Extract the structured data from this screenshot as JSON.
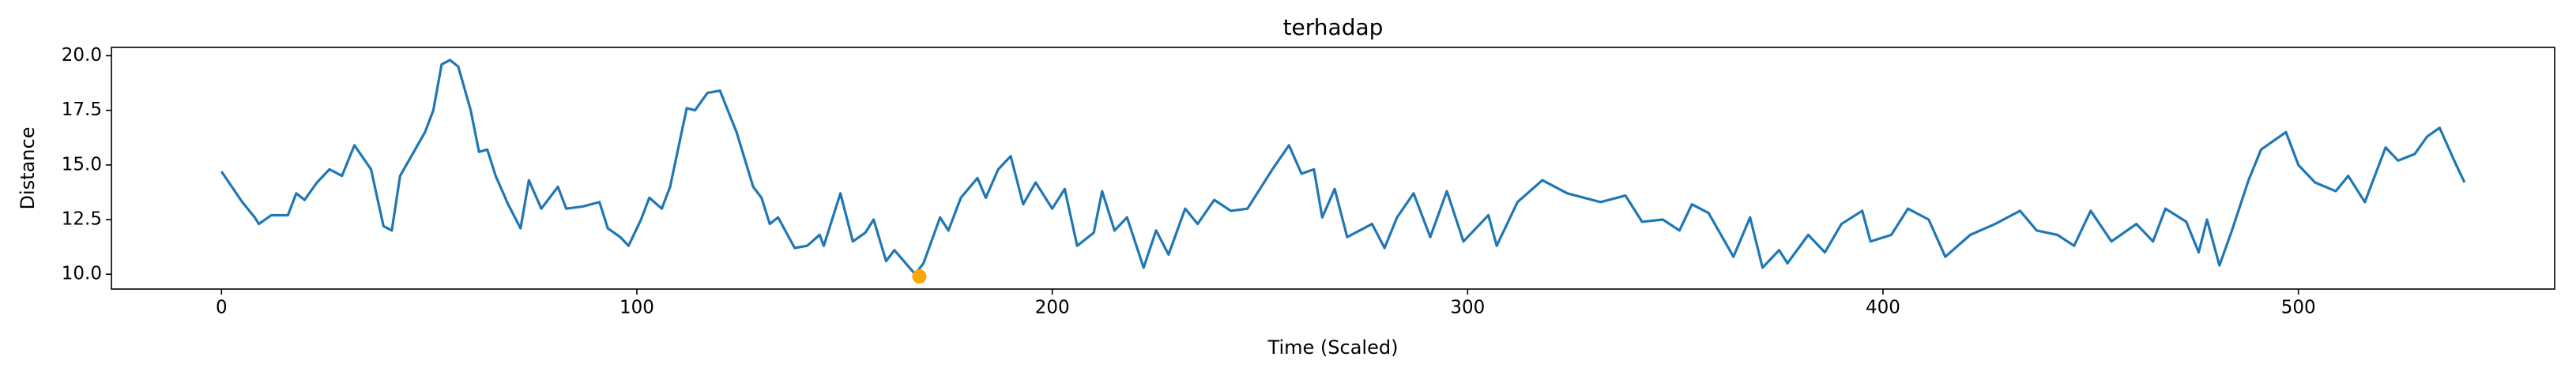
{
  "chart_data": {
    "type": "line",
    "title": "terhadap",
    "x_label": "Time (Scaled)",
    "y_label": "Distance",
    "x": [
      0,
      5,
      8,
      9,
      12,
      16,
      18,
      20,
      23,
      26,
      29,
      32,
      36,
      39,
      41,
      43,
      49,
      51,
      53,
      55,
      57,
      60,
      62,
      64,
      66,
      69,
      72,
      74,
      77,
      81,
      83,
      87,
      91,
      93,
      96,
      98,
      101,
      103,
      106,
      108,
      112,
      114,
      117,
      120,
      124,
      128,
      130,
      132,
      134,
      138,
      141,
      144,
      145,
      149,
      152,
      155,
      157,
      160,
      162,
      167,
      169,
      173,
      175,
      178,
      182,
      184,
      187,
      190,
      193,
      196,
      200,
      203,
      206,
      210,
      212,
      215,
      218,
      222,
      225,
      228,
      232,
      235,
      239,
      243,
      247,
      253,
      257,
      260,
      263,
      265,
      268,
      271,
      277,
      280,
      283,
      287,
      291,
      295,
      299,
      305,
      307,
      312,
      318,
      324,
      332,
      338,
      342,
      347,
      351,
      354,
      358,
      364,
      368,
      371,
      375,
      377,
      382,
      386,
      390,
      395,
      397,
      402,
      406,
      411,
      415,
      421,
      427,
      433,
      437,
      442,
      446,
      450,
      455,
      461,
      465,
      468,
      473,
      476,
      478,
      481,
      484,
      488,
      491,
      497,
      500,
      504,
      509,
      512,
      516,
      521,
      524,
      528,
      531,
      534,
      538,
      540
    ],
    "series": [
      {
        "name": "Distance",
        "color": "#1f77b4",
        "values": [
          14.7,
          13.3,
          12.6,
          12.3,
          12.7,
          12.7,
          13.7,
          13.4,
          14.2,
          14.8,
          14.5,
          15.9,
          14.8,
          12.2,
          12.0,
          14.5,
          16.5,
          17.5,
          19.6,
          19.8,
          19.5,
          17.5,
          15.6,
          15.7,
          14.5,
          13.2,
          12.1,
          14.3,
          13.0,
          14.0,
          13.0,
          13.1,
          13.3,
          12.1,
          11.7,
          11.3,
          12.5,
          13.5,
          13.0,
          14.0,
          17.6,
          17.5,
          18.3,
          18.4,
          16.5,
          14.0,
          13.5,
          12.3,
          12.6,
          11.2,
          11.3,
          11.8,
          11.3,
          13.7,
          11.5,
          11.9,
          12.5,
          10.6,
          11.1,
          10.0,
          10.5,
          12.6,
          12.0,
          13.5,
          14.4,
          13.5,
          14.8,
          15.4,
          13.2,
          14.2,
          13.0,
          13.9,
          11.3,
          11.9,
          13.8,
          12.0,
          12.6,
          10.3,
          12.0,
          10.9,
          13.0,
          12.3,
          13.4,
          12.9,
          13.0,
          14.8,
          15.9,
          14.6,
          14.8,
          12.6,
          13.9,
          11.7,
          12.3,
          11.2,
          12.6,
          13.7,
          11.7,
          13.8,
          11.5,
          12.7,
          11.3,
          13.3,
          14.3,
          13.7,
          13.3,
          13.6,
          12.4,
          12.5,
          12.0,
          13.2,
          12.8,
          10.8,
          12.6,
          10.3,
          11.1,
          10.5,
          11.8,
          11.0,
          12.3,
          12.9,
          11.5,
          11.8,
          13.0,
          12.5,
          10.8,
          11.8,
          12.3,
          12.9,
          12.0,
          11.8,
          11.3,
          12.9,
          11.5,
          12.3,
          11.5,
          13.0,
          12.4,
          11.0,
          12.5,
          10.4,
          12.0,
          14.3,
          15.7,
          16.5,
          15.0,
          14.2,
          13.8,
          14.5,
          13.3,
          15.8,
          15.2,
          15.5,
          16.3,
          16.7,
          15.0,
          14.2
        ]
      }
    ],
    "points": [
      {
        "x": 168,
        "y": 9.9,
        "color": "#ffa500"
      }
    ],
    "xlim": [
      -26.5,
      561.7
    ],
    "ylim": [
      9.32,
      20.38
    ],
    "xticks": [
      0,
      100,
      200,
      300,
      400,
      500
    ],
    "yticks": [
      {
        "value": 10,
        "label": "10.0"
      },
      12.5,
      {
        "value": 15,
        "label": "15.0"
      },
      17.5,
      {
        "value": 20,
        "label": "20.0"
      }
    ]
  }
}
